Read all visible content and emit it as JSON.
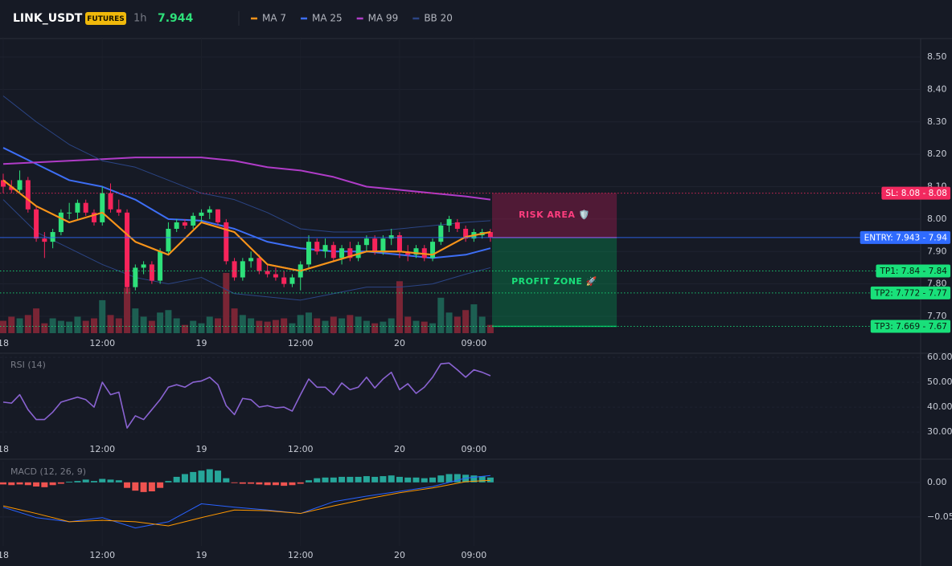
{
  "header": {
    "symbol": "LINK_USDT",
    "badge": "FUTURES",
    "interval": "1h",
    "price": 7.944
  },
  "chart_data": [
    {
      "type": "candlestick",
      "xlim": [
        -0.39,
        111.1
      ],
      "ylim": [
        7.648,
        8.557
      ],
      "xticks": [
        {
          "value": 0,
          "label": "18"
        },
        {
          "value": 12,
          "label": "12:00"
        },
        {
          "value": 24,
          "label": "19"
        },
        {
          "value": 36,
          "label": "12:00"
        },
        {
          "value": 48,
          "label": "20"
        },
        {
          "value": 57,
          "label": "09:00"
        }
      ],
      "yticks": [
        {
          "value": 7.7,
          "label": "7.70"
        },
        {
          "value": 7.8,
          "label": "7.80"
        },
        {
          "value": 7.9,
          "label": "7.90"
        },
        {
          "value": 8.0,
          "label": "8.00"
        },
        {
          "value": 8.1,
          "label": "8.10"
        },
        {
          "value": 8.2,
          "label": "8.20"
        },
        {
          "value": 8.3,
          "label": "8.30"
        },
        {
          "value": 8.4,
          "label": "8.40"
        },
        {
          "value": 8.5,
          "label": "8.50"
        }
      ],
      "up_color": "#2ee07a",
      "down_color": "#f7245b",
      "volume_up_color": "#1d5f52",
      "volume_down_color": "#7a2535",
      "candles": {
        "x": [
          0,
          1,
          2,
          3,
          4,
          5,
          6,
          7,
          8,
          9,
          10,
          11,
          12,
          13,
          14,
          15,
          16,
          17,
          18,
          19,
          20,
          21,
          22,
          23,
          24,
          25,
          26,
          27,
          28,
          29,
          30,
          31,
          32,
          33,
          34,
          35,
          36,
          37,
          38,
          39,
          40,
          41,
          42,
          43,
          44,
          45,
          46,
          47,
          48,
          49,
          50,
          51,
          52,
          53,
          54,
          55,
          56,
          57,
          58,
          59
        ],
        "open": [
          8.12,
          8.1,
          8.09,
          8.12,
          8.03,
          7.94,
          7.93,
          7.96,
          8.02,
          8.02,
          8.05,
          8.02,
          7.99,
          8.08,
          8.03,
          8.02,
          7.79,
          7.85,
          7.86,
          7.81,
          7.9,
          7.97,
          7.99,
          7.98,
          8.01,
          8.02,
          8.03,
          7.99,
          7.87,
          7.82,
          7.87,
          7.88,
          7.84,
          7.83,
          7.82,
          7.8,
          7.82,
          7.86,
          7.93,
          7.9,
          7.92,
          7.88,
          7.91,
          7.88,
          7.92,
          7.94,
          7.9,
          7.94,
          7.95,
          7.9,
          7.89,
          7.91,
          7.88,
          7.93,
          7.98,
          7.99,
          7.97,
          7.94,
          7.95,
          7.96
        ],
        "high": [
          8.14,
          8.12,
          8.15,
          8.13,
          8.04,
          7.96,
          7.97,
          8.03,
          8.05,
          8.06,
          8.06,
          8.03,
          8.1,
          8.11,
          8.06,
          8.03,
          7.86,
          7.87,
          7.87,
          7.91,
          7.99,
          8.0,
          8.0,
          8.02,
          8.03,
          8.04,
          8.03,
          8.0,
          7.88,
          7.88,
          7.9,
          7.89,
          7.86,
          7.85,
          7.84,
          7.83,
          7.87,
          7.95,
          7.94,
          7.94,
          7.93,
          7.92,
          7.93,
          7.93,
          7.95,
          7.95,
          7.95,
          7.97,
          7.96,
          7.92,
          7.92,
          7.92,
          7.94,
          7.99,
          8.01,
          8.0,
          7.98,
          7.97,
          7.97,
          7.97
        ],
        "low": [
          8.08,
          8.08,
          8.08,
          8.02,
          7.93,
          7.88,
          7.91,
          7.95,
          8.0,
          8.0,
          8.01,
          7.98,
          7.98,
          8.02,
          8.01,
          7.77,
          7.78,
          7.83,
          7.8,
          7.8,
          7.89,
          7.96,
          7.97,
          7.97,
          7.99,
          8.0,
          7.98,
          7.86,
          7.81,
          7.81,
          7.85,
          7.83,
          7.82,
          7.81,
          7.79,
          7.79,
          7.78,
          7.85,
          7.89,
          7.88,
          7.87,
          7.86,
          7.87,
          7.87,
          7.9,
          7.89,
          7.89,
          7.92,
          7.88,
          7.87,
          7.88,
          7.87,
          7.87,
          7.92,
          7.96,
          7.96,
          7.93,
          7.93,
          7.94,
          7.93
        ],
        "close": [
          8.1,
          8.09,
          8.12,
          8.03,
          7.94,
          7.93,
          7.96,
          8.02,
          8.02,
          8.05,
          8.02,
          7.99,
          8.08,
          8.03,
          8.02,
          7.79,
          7.85,
          7.86,
          7.81,
          7.9,
          7.97,
          7.99,
          7.98,
          8.01,
          8.02,
          8.03,
          7.99,
          7.87,
          7.82,
          7.87,
          7.88,
          7.84,
          7.83,
          7.82,
          7.8,
          7.82,
          7.86,
          7.93,
          7.9,
          7.92,
          7.88,
          7.91,
          7.88,
          7.92,
          7.94,
          7.9,
          7.94,
          7.95,
          7.9,
          7.89,
          7.91,
          7.88,
          7.93,
          7.98,
          8.0,
          7.97,
          7.94,
          7.96,
          7.96,
          7.944
        ],
        "volume": [
          15,
          20,
          18,
          22,
          30,
          12,
          18,
          15,
          14,
          20,
          15,
          18,
          40,
          22,
          18,
          55,
          30,
          20,
          15,
          25,
          28,
          18,
          10,
          15,
          12,
          20,
          18,
          73,
          30,
          22,
          18,
          15,
          14,
          16,
          18,
          12,
          22,
          25,
          18,
          15,
          20,
          18,
          22,
          20,
          15,
          12,
          14,
          18,
          63,
          20,
          15,
          14,
          12,
          43,
          25,
          20,
          28,
          35,
          20,
          10
        ]
      },
      "line_x": [
        0,
        4,
        8,
        12,
        16,
        20,
        24,
        28,
        32,
        36,
        40,
        44,
        48,
        52,
        56,
        59
      ],
      "series": [
        {
          "name": "MA 7",
          "color": "#f7931a",
          "values": [
            8.12,
            8.04,
            7.99,
            8.02,
            7.93,
            7.89,
            7.99,
            7.96,
            7.86,
            7.84,
            7.87,
            7.9,
            7.9,
            7.89,
            7.945,
            7.96
          ]
        },
        {
          "name": "MA 25",
          "color": "#3d6ef5",
          "values": [
            8.22,
            8.17,
            8.12,
            8.1,
            8.06,
            8.0,
            7.995,
            7.97,
            7.93,
            7.91,
            7.9,
            7.9,
            7.89,
            7.88,
            7.89,
            7.91
          ]
        },
        {
          "name": "MA 99",
          "color": "#b03cc8",
          "values": [
            8.17,
            8.175,
            8.18,
            8.185,
            8.19,
            8.19,
            8.19,
            8.18,
            8.16,
            8.15,
            8.13,
            8.1,
            8.09,
            8.08,
            8.07,
            8.06
          ]
        },
        {
          "name": "BB 20",
          "color": "#2b4585",
          "upper": [
            8.38,
            8.3,
            8.23,
            8.18,
            8.16,
            8.12,
            8.08,
            8.06,
            8.02,
            7.97,
            7.96,
            7.96,
            7.97,
            7.98,
            7.99,
            7.995
          ],
          "lower": [
            8.06,
            7.96,
            7.91,
            7.86,
            7.82,
            7.8,
            7.82,
            7.77,
            7.76,
            7.75,
            7.77,
            7.79,
            7.79,
            7.8,
            7.83,
            7.85
          ]
        }
      ],
      "levels": [
        {
          "label": "SL: 8.08 - 8.08",
          "value": 8.08,
          "color": "#f2295f",
          "text_color": "#ffffff",
          "style": "dotted"
        },
        {
          "label": "ENTRY: 7.943 - 7.94",
          "value": 7.943,
          "color": "#2f6bff",
          "text_color": "#ffffff",
          "style": "solid"
        },
        {
          "label": "TP1: 7.84 - 7.84",
          "value": 7.84,
          "color": "#19e07a",
          "text_color": "#0b1a10",
          "style": "dotted"
        },
        {
          "label": "TP2: 7.772 - 7.77",
          "value": 7.772,
          "color": "#19e07a",
          "text_color": "#0b1a10",
          "style": "dotted"
        },
        {
          "label": "TP3: 7.669 - 7.67",
          "value": 7.669,
          "color": "#19e07a",
          "text_color": "#0b1a10",
          "style": "dotted"
        }
      ],
      "zones": [
        {
          "label": "RISK AREA 🛡️",
          "from": 8.08,
          "to": 7.943,
          "x": [
            59.2,
            74.3
          ],
          "color": "#e91e63",
          "text_color": "#ff3d7f"
        },
        {
          "label": "PROFIT ZONE 🚀",
          "from": 7.943,
          "to": 7.669,
          "x": [
            59.2,
            74.3
          ],
          "color": "#00c060",
          "text_color": "#19e07a"
        }
      ]
    },
    {
      "type": "line",
      "title": "RSI (14)",
      "xlim": [
        -0.39,
        111.1
      ],
      "ylim": [
        26.8,
        61
      ],
      "xticks": [
        {
          "value": 0,
          "label": "18"
        },
        {
          "value": 12,
          "label": "12:00"
        },
        {
          "value": 24,
          "label": "19"
        },
        {
          "value": 36,
          "label": "12:00"
        },
        {
          "value": 48,
          "label": "20"
        },
        {
          "value": 57,
          "label": "09:00"
        }
      ],
      "yticks": [
        {
          "value": 30,
          "label": "30.00"
        },
        {
          "value": 40,
          "label": "40.00"
        },
        {
          "value": 50,
          "label": "50.00"
        },
        {
          "value": 60,
          "label": "60.00"
        }
      ],
      "color": "#8a63d2",
      "x": [
        0,
        1,
        2,
        3,
        4,
        5,
        6,
        7,
        8,
        9,
        10,
        11,
        12,
        13,
        14,
        15,
        16,
        17,
        18,
        19,
        20,
        21,
        22,
        23,
        24,
        25,
        26,
        27,
        28,
        29,
        30,
        31,
        32,
        33,
        34,
        35,
        36,
        37,
        38,
        39,
        40,
        41,
        42,
        43,
        44,
        45,
        46,
        47,
        48,
        49,
        50,
        51,
        52,
        53,
        54,
        55,
        56,
        57,
        58,
        59
      ],
      "values": [
        42,
        41.6,
        45,
        39,
        35,
        35,
        38,
        42,
        43,
        44,
        43,
        40,
        50,
        45,
        46,
        31.6,
        36.5,
        35,
        39,
        43,
        48,
        49,
        48,
        50,
        50.5,
        52,
        49,
        40.6,
        37,
        43.5,
        43,
        40,
        40.6,
        39.7,
        40,
        38.4,
        45,
        51.3,
        48,
        48,
        45,
        49.7,
        47,
        48,
        52,
        47.7,
        51.3,
        54,
        47,
        49.4,
        45.5,
        48,
        52,
        57.4,
        57.7,
        55,
        52,
        55,
        54,
        52.6
      ]
    },
    {
      "type": "macd",
      "title": "MACD (12, 26, 9)",
      "xlim": [
        -0.39,
        111.1
      ],
      "ylim": [
        -0.092,
        0.03
      ],
      "xticks": [
        {
          "value": 0,
          "label": "18"
        },
        {
          "value": 12,
          "label": "12:00"
        },
        {
          "value": 24,
          "label": "19"
        },
        {
          "value": 36,
          "label": "12:00"
        },
        {
          "value": 48,
          "label": "20"
        },
        {
          "value": 57,
          "label": "09:00"
        }
      ],
      "yticks": [
        {
          "value": 0,
          "label": "0.00"
        },
        {
          "value": -0.05,
          "label": "−0.05"
        }
      ],
      "up_color": "#26a69a",
      "down_color": "#ef5350",
      "x": [
        0,
        1,
        2,
        3,
        4,
        5,
        6,
        7,
        8,
        9,
        10,
        11,
        12,
        13,
        14,
        15,
        16,
        17,
        18,
        19,
        20,
        21,
        22,
        23,
        24,
        25,
        26,
        27,
        28,
        29,
        30,
        31,
        32,
        33,
        34,
        35,
        36,
        37,
        38,
        39,
        40,
        41,
        42,
        43,
        44,
        45,
        46,
        47,
        48,
        49,
        50,
        51,
        52,
        53,
        54,
        55,
        56,
        57,
        58,
        59
      ],
      "histogram": [
        -0.003,
        -0.004,
        -0.003,
        -0.004,
        -0.006,
        -0.007,
        -0.004,
        -0.002,
        0.001,
        0.002,
        0.004,
        0.002,
        0.005,
        0.004,
        0.003,
        -0.008,
        -0.012,
        -0.014,
        -0.013,
        -0.008,
        0.002,
        0.008,
        0.012,
        0.015,
        0.017,
        0.019,
        0.017,
        0.006,
        -0.001,
        -0.002,
        -0.002,
        -0.003,
        -0.004,
        -0.004,
        -0.005,
        -0.004,
        -0.002,
        0.003,
        0.006,
        0.007,
        0.007,
        0.008,
        0.008,
        0.008,
        0.009,
        0.008,
        0.009,
        0.01,
        0.008,
        0.007,
        0.007,
        0.006,
        0.007,
        0.01,
        0.012,
        0.012,
        0.011,
        0.01,
        0.009,
        0.007
      ],
      "line_x": [
        0,
        4,
        8,
        12,
        16,
        20,
        24,
        28,
        32,
        36,
        40,
        44,
        48,
        52,
        56,
        59
      ],
      "macd": {
        "color": "#2962ff",
        "values": [
          -0.036,
          -0.051,
          -0.057,
          -0.051,
          -0.066,
          -0.057,
          -0.031,
          -0.036,
          -0.04,
          -0.045,
          -0.028,
          -0.02,
          -0.013,
          -0.006,
          0.006,
          0.01
        ]
      },
      "signal": {
        "color": "#ff9800",
        "values": [
          -0.034,
          -0.045,
          -0.057,
          -0.055,
          -0.057,
          -0.063,
          -0.051,
          -0.04,
          -0.041,
          -0.045,
          -0.034,
          -0.024,
          -0.015,
          -0.008,
          0.001,
          0.003
        ]
      }
    }
  ]
}
